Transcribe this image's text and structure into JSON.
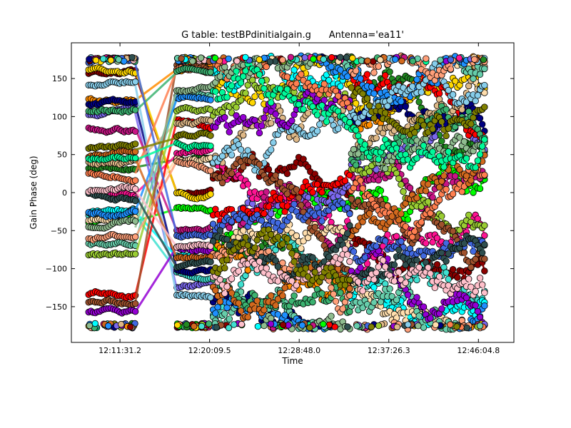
{
  "chart_data": {
    "type": "scatter",
    "title": "G table: testBPdinitialgain.g      Antenna='ea11'",
    "xlabel": "Time",
    "ylabel": "Gain Phase (deg)",
    "xlim": [
      "12:06:50",
      "12:49:30"
    ],
    "ylim": [
      -197,
      197
    ],
    "x_ticks": [
      "12:11:31.2",
      "12:20:09.5",
      "12:28:48.0",
      "12:37:26.3",
      "12:46:04.8"
    ],
    "y_ticks": [
      150,
      100,
      50,
      0,
      -50,
      -100,
      -150
    ],
    "grid": false,
    "legend": "none",
    "marker": "circle",
    "scans": [
      {
        "start": "12:08:30",
        "end": "12:13:00"
      },
      {
        "start": "12:17:00",
        "end": "12:20:15"
      },
      {
        "start": "12:20:30",
        "end": "12:33:40"
      },
      {
        "start": "12:33:50",
        "end": "12:46:40"
      }
    ],
    "series_colors": [
      "#8b0000",
      "#228b22",
      "#00ff00",
      "#7b68ee",
      "#40e0d0",
      "#ff1493",
      "#ffd700",
      "#ff8c00",
      "#000080",
      "#00ffff",
      "#c71585",
      "#ffdead",
      "#ff0000",
      "#deb887",
      "#66cdaa",
      "#1e90ff",
      "#9acd32",
      "#87ceeb",
      "#a0522d",
      "#9400d3",
      "#ff7f50",
      "#3cb371",
      "#ffa07a",
      "#4169e1",
      "#8fbc8f",
      "#d2691e",
      "#00fa9a",
      "#2f4f4f",
      "#ffc0cb",
      "#808000"
    ]
  }
}
